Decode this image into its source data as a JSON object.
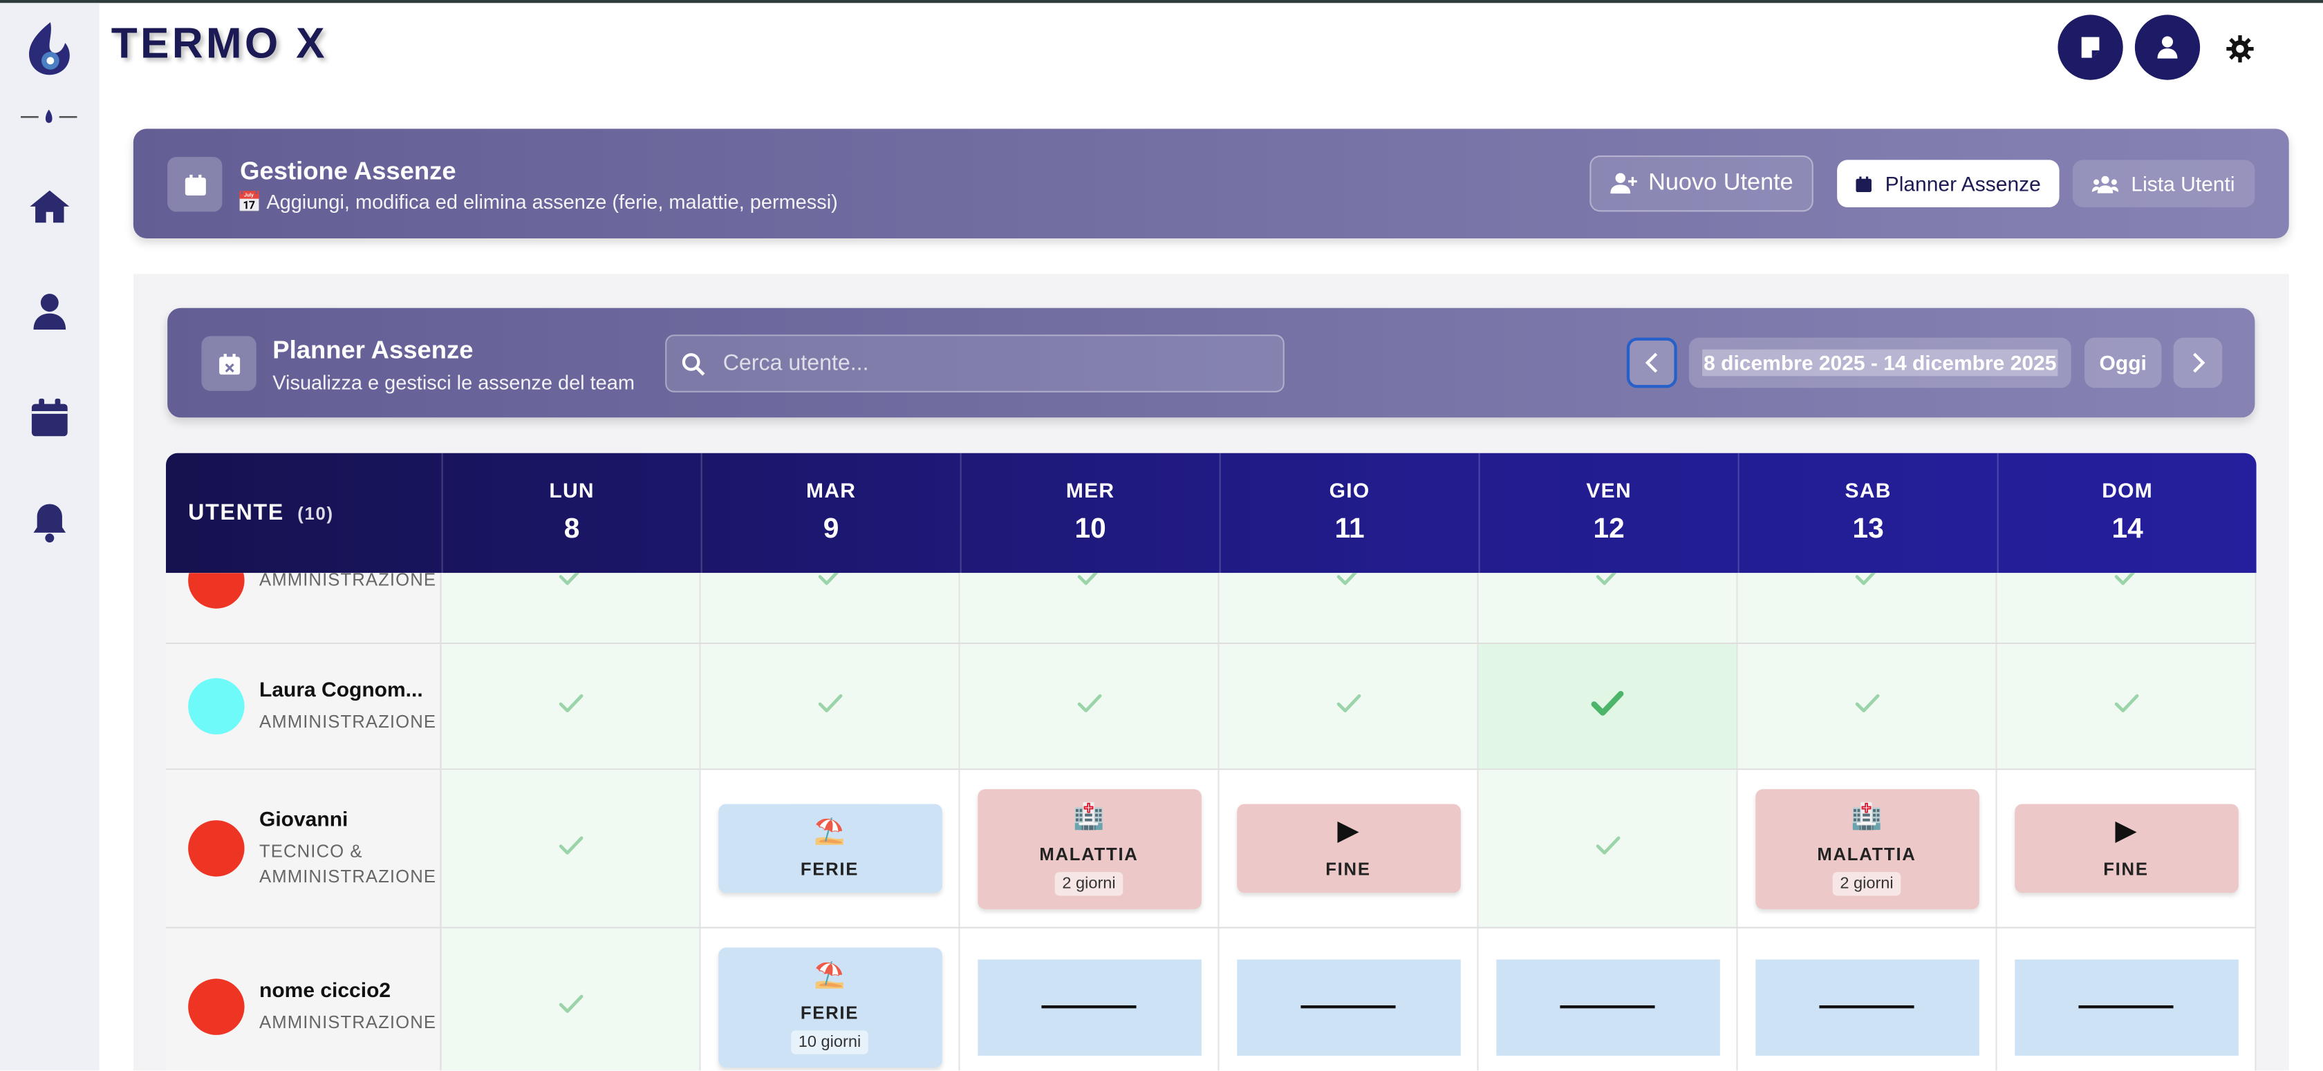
{
  "brand": "TERMO X",
  "header": {
    "title": "Gestione Assenze",
    "subtitle": "📅 Aggiungi, modifica ed elimina assenze (ferie, malattie, permessi)",
    "buttons": [
      "Nuovo Utente",
      "Planner Assenze",
      "Lista Utenti"
    ]
  },
  "planner": {
    "title": "Planner Assenze",
    "subtitle": "Visualizza e gestisci le assenze del team",
    "search_placeholder": "Cerca utente...",
    "range": "8 dicembre 2025 - 14 dicembre 2025",
    "today": "Oggi"
  },
  "table": {
    "user_header": "UTENTE",
    "user_count": "(10)",
    "days": [
      {
        "name": "LUN",
        "num": 8
      },
      {
        "name": "MAR",
        "num": 9
      },
      {
        "name": "MER",
        "num": 10
      },
      {
        "name": "GIO",
        "num": 11
      },
      {
        "name": "VEN",
        "num": 12
      },
      {
        "name": "SAB",
        "num": 13
      },
      {
        "name": "DOM",
        "num": 14
      }
    ],
    "rows": [
      {
        "dept": "AMMINISTRAZIONE",
        "color": "#ee3524",
        "cells": [
          {
            "type": "check"
          },
          {
            "type": "check"
          },
          {
            "type": "check"
          },
          {
            "type": "check"
          },
          {
            "type": "check"
          },
          {
            "type": "check"
          },
          {
            "type": "check"
          }
        ]
      },
      {
        "name": "Laura Cognom...",
        "dept": "AMMINISTRAZIONE",
        "color": "#6ffafa",
        "cells": [
          {
            "type": "check"
          },
          {
            "type": "check"
          },
          {
            "type": "check"
          },
          {
            "type": "check"
          },
          {
            "type": "check",
            "highlight": true
          },
          {
            "type": "check"
          },
          {
            "type": "check"
          }
        ]
      },
      {
        "name": "Giovanni",
        "dept": "TECNICO & AMMINISTRAZIONE",
        "color": "#ee3524",
        "cells": [
          {
            "type": "check"
          },
          {
            "type": "ferie",
            "icon": "⛱️",
            "label": "FERIE"
          },
          {
            "type": "malattia",
            "icon": "🏥",
            "label": "MALATTIA",
            "days": "2 giorni"
          },
          {
            "type": "fine",
            "icon": "▶",
            "label": "FINE"
          },
          {
            "type": "check"
          },
          {
            "type": "malattia",
            "icon": "🏥",
            "label": "MALATTIA",
            "days": "2 giorni"
          },
          {
            "type": "fine",
            "icon": "▶",
            "label": "FINE"
          }
        ]
      },
      {
        "name": "nome ciccio2",
        "dept": "AMMINISTRAZIONE",
        "color": "#ee3524",
        "cells": [
          {
            "type": "check"
          },
          {
            "type": "ferie",
            "icon": "⛱️",
            "label": "FERIE",
            "days": "10 giorni"
          },
          {
            "type": "continue"
          },
          {
            "type": "continue"
          },
          {
            "type": "continue"
          },
          {
            "type": "continue"
          },
          {
            "type": "continue"
          }
        ]
      }
    ]
  }
}
